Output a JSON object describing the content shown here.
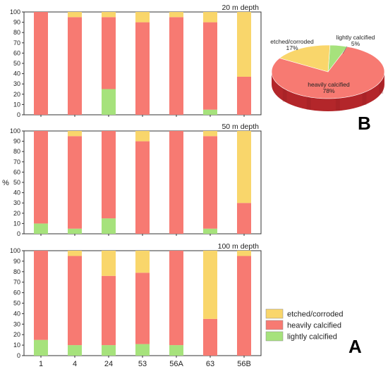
{
  "colors": {
    "etched": "#F9D66B",
    "heavy": "#F77A72",
    "light": "#A6E27C",
    "pie_side": "#B3262A",
    "axis": "#333333"
  },
  "chart_data": [
    {
      "type": "bar",
      "stacked": true,
      "title": "20 m depth",
      "ylabel": "",
      "ylim": [
        0,
        100
      ],
      "yticks": [
        0,
        10,
        20,
        30,
        40,
        50,
        60,
        70,
        80,
        90,
        100
      ],
      "categories": [
        "1",
        "4",
        "24",
        "53",
        "56A",
        "63",
        "56B"
      ],
      "series": [
        {
          "name": "lightly calcified",
          "values": [
            0,
            0,
            25,
            0,
            0,
            5,
            0
          ]
        },
        {
          "name": "heavily calcified",
          "values": [
            100,
            95,
            70,
            90,
            95,
            85,
            37
          ]
        },
        {
          "name": "etched/corroded",
          "values": [
            0,
            5,
            5,
            10,
            5,
            10,
            63
          ]
        }
      ]
    },
    {
      "type": "bar",
      "stacked": true,
      "title": "50 m depth",
      "ylabel": "%",
      "ylim": [
        0,
        100
      ],
      "yticks": [
        0,
        10,
        20,
        30,
        40,
        50,
        60,
        70,
        80,
        90,
        100
      ],
      "categories": [
        "1",
        "4",
        "24",
        "53",
        "56A",
        "63",
        "56B"
      ],
      "series": [
        {
          "name": "lightly calcified",
          "values": [
            10,
            5,
            15,
            0,
            0,
            5,
            0
          ]
        },
        {
          "name": "heavily calcified",
          "values": [
            90,
            90,
            85,
            90,
            100,
            90,
            30
          ]
        },
        {
          "name": "etched/corroded",
          "values": [
            0,
            5,
            0,
            10,
            0,
            5,
            70
          ]
        }
      ]
    },
    {
      "type": "bar",
      "stacked": true,
      "title": "100 m depth",
      "ylabel": "",
      "ylim": [
        0,
        100
      ],
      "yticks": [
        0,
        10,
        20,
        30,
        40,
        50,
        60,
        70,
        80,
        90,
        100
      ],
      "categories": [
        "1",
        "4",
        "24",
        "53",
        "56A",
        "63",
        "56B"
      ],
      "series": [
        {
          "name": "lightly calcified",
          "values": [
            15,
            10,
            10,
            11,
            10,
            0,
            0
          ]
        },
        {
          "name": "heavily calcified",
          "values": [
            85,
            85,
            66,
            68,
            90,
            35,
            95
          ]
        },
        {
          "name": "etched/corroded",
          "values": [
            0,
            5,
            24,
            21,
            0,
            65,
            5
          ]
        }
      ]
    },
    {
      "type": "pie",
      "slices": [
        {
          "label": "lightly calcified",
          "value": 5,
          "value_label": "5%"
        },
        {
          "label": "heavily calcified",
          "value": 78,
          "value_label": "78%"
        },
        {
          "label": "etched/corroded",
          "value": 17,
          "value_label": "17%"
        }
      ]
    }
  ],
  "legend": {
    "items": [
      {
        "label": "etched/corroded",
        "color_key": "etched"
      },
      {
        "label": "heavily calcified",
        "color_key": "heavy"
      },
      {
        "label": "lightly calcified",
        "color_key": "light"
      }
    ]
  },
  "panel_letters": {
    "a": "A",
    "b": "B"
  }
}
